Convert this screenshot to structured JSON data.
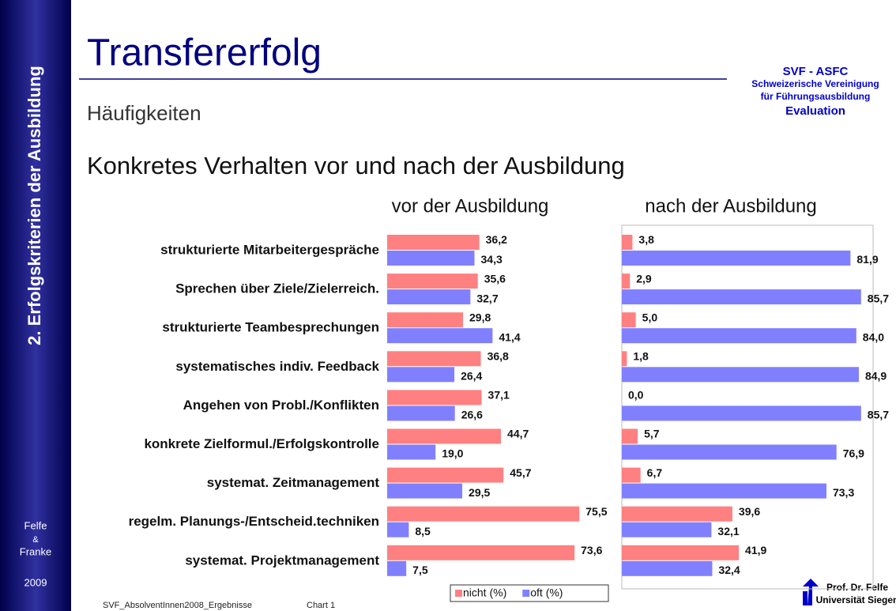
{
  "sidebar": {
    "section": "2. Erfolgskriterien der Ausbildung",
    "authors": [
      "Felfe",
      "&",
      "Franke"
    ],
    "year": "2009"
  },
  "header": {
    "title": "Transfererfolg",
    "subtitle": "Häufigkeiten",
    "org": [
      "SVF - ASFC",
      "Schweizerische Vereinigung",
      "für Führungsausbildung",
      "Evaluation"
    ]
  },
  "heading": "Konkretes Verhalten vor und nach der Ausbildung",
  "footer": {
    "file": "SVF_AbsolventInnen2008_Ergebnisse",
    "chart": "Chart 1",
    "author": [
      "Prof. Dr. Felfe",
      "Universität Siegen"
    ]
  },
  "chart_data": [
    {
      "type": "bar",
      "orientation": "horizontal",
      "title": "vor der Ausbildung",
      "categories": [
        "strukturierte Mitarbeitergespräche",
        "Sprechen über Ziele/Zielerreich.",
        "strukturierte Teambesprechungen",
        "systematisches indiv. Feedback",
        "Angehen von Probl./Konflikten",
        "konkrete Zielformul./Erfolgskontrolle",
        "systemat. Zeitmanagement",
        "regelm. Planungs-/Entscheid.techniken",
        "systemat. Projektmanagement"
      ],
      "series": [
        {
          "name": "nicht (%)",
          "color": "#ff8080",
          "values": [
            36.2,
            35.6,
            29.8,
            36.8,
            37.1,
            44.7,
            45.7,
            75.5,
            73.6
          ],
          "value_labels": [
            "36,2",
            "35,6",
            "29,8",
            "36,8",
            "37,1",
            "44,7",
            "45,7",
            "75,5",
            "73,6"
          ]
        },
        {
          "name": "oft (%)",
          "color": "#8080ff",
          "values": [
            34.3,
            32.7,
            41.4,
            26.4,
            26.6,
            19.0,
            29.5,
            8.5,
            7.5
          ],
          "value_labels": [
            "34,3",
            "32,7",
            "41,4",
            "26,4",
            "26,6",
            "19,0",
            "29,5",
            "8,5",
            "7,5"
          ]
        }
      ],
      "xlim": [
        0,
        90
      ]
    },
    {
      "type": "bar",
      "orientation": "horizontal",
      "title": "nach der Ausbildung",
      "series": [
        {
          "color": "#ff8080",
          "values": [
            3.8,
            2.9,
            5.0,
            1.8,
            0.0,
            5.7,
            6.7,
            39.6,
            41.9
          ],
          "value_labels": [
            "3,8",
            "2,9",
            "5,0",
            "1,8",
            "0,0",
            "5,7",
            "6,7",
            "39,6",
            "41,9"
          ]
        },
        {
          "color": "#8080ff",
          "values": [
            81.9,
            85.7,
            84.0,
            84.9,
            85.7,
            76.9,
            73.3,
            32.1,
            32.4
          ],
          "value_labels": [
            "81,9",
            "85,7",
            "84,0",
            "84,9",
            "85,7",
            "76,9",
            "73,3",
            "32,1",
            "32,4"
          ]
        }
      ],
      "xlim": [
        0,
        90
      ]
    }
  ]
}
